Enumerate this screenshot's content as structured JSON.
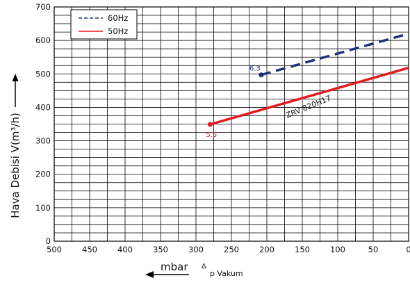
{
  "chart_data": {
    "type": "line",
    "xlabel": "mbar",
    "xlabel_secondary": "p Vakum",
    "ylabel": "Hava Debisi V(m³/h)",
    "xlim": [
      500,
      0
    ],
    "ylim": [
      0,
      700
    ],
    "x_ticks": [
      500,
      450,
      400,
      350,
      300,
      250,
      200,
      150,
      100,
      50,
      0
    ],
    "y_ticks": [
      0,
      100,
      200,
      300,
      400,
      500,
      600,
      700
    ],
    "grid": true,
    "legend_position": "top-left",
    "series": [
      {
        "name": "60Hz",
        "color": "#1f2f7a",
        "line_style": "dashed",
        "x": [
          208,
          0
        ],
        "y": [
          497,
          620
        ],
        "start_marker_label": "6.3"
      },
      {
        "name": "50Hz",
        "color": "#e31a22",
        "line_style": "solid",
        "x": [
          280,
          0
        ],
        "y": [
          349,
          518
        ],
        "start_marker_label": "5.5"
      }
    ],
    "annotations": [
      {
        "text": "ZRV 820H17",
        "x": 140,
        "y": 395,
        "rotation_deg": -22
      }
    ]
  }
}
